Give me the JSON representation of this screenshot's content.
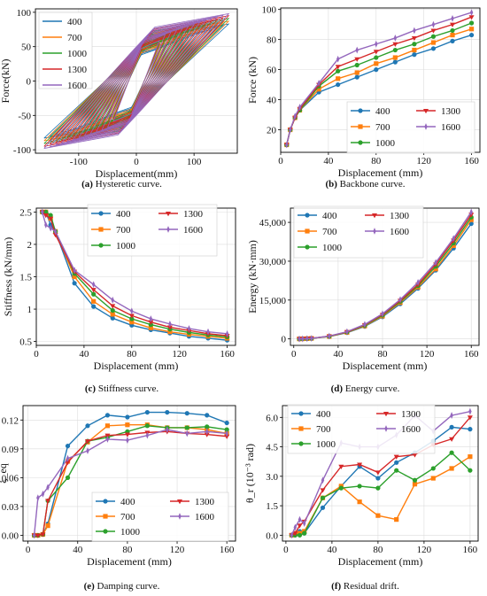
{
  "colors": {
    "400": "#1f77b4",
    "700": "#ff7f0e",
    "1000": "#2ca02c",
    "1300": "#d62728",
    "1600": "#9467bd"
  },
  "series_names": [
    "400",
    "700",
    "1000",
    "1300",
    "1600"
  ],
  "captions": [
    {
      "letter": "(a)",
      "text": "Hysteretic curve."
    },
    {
      "letter": "(b)",
      "text": "Backbone curve."
    },
    {
      "letter": "(c)",
      "text": "Stiffness curve."
    },
    {
      "letter": "(d)",
      "text": "Energy curve."
    },
    {
      "letter": "(e)",
      "text": "Damping curve."
    },
    {
      "letter": "(f)",
      "text": "Residual drift."
    }
  ],
  "chart_data": [
    {
      "type": "line",
      "title": "",
      "xlabel": "Displacement(mm)",
      "ylabel": "Force(kN)",
      "xlim": [
        -175,
        175
      ],
      "ylim": [
        -105,
        105
      ],
      "xticks": [
        -100,
        0,
        100
      ],
      "yticks": [
        -100,
        -50,
        0,
        50,
        100
      ],
      "legend": "top-left",
      "markers": false,
      "envelope": {
        "x": [
          0,
          5,
          10,
          16,
          20,
          32,
          48,
          64,
          80,
          96,
          112,
          128,
          144,
          160
        ],
        "series": {
          "400": [
            0,
            10,
            20,
            28,
            33,
            45,
            50,
            55,
            60,
            65,
            70,
            74,
            79,
            83
          ],
          "700": [
            0,
            10,
            20,
            28,
            33,
            47,
            54,
            58,
            64,
            68,
            73,
            78,
            83,
            87
          ],
          "1000": [
            0,
            10,
            20,
            28,
            33,
            49,
            59,
            63,
            68,
            73,
            77,
            82,
            86,
            91
          ],
          "1300": [
            0,
            10,
            20,
            28,
            34,
            50,
            62,
            67,
            72,
            77,
            81,
            86,
            90,
            95
          ],
          "1600": [
            0,
            10,
            20,
            29,
            35,
            51,
            67,
            73,
            77,
            81,
            86,
            90,
            94,
            98
          ]
        }
      },
      "loop_amplitudes": [
        40,
        50,
        60,
        70,
        80,
        90,
        100,
        110,
        120,
        130,
        140,
        150,
        160
      ]
    },
    {
      "type": "line",
      "title": "",
      "xlabel": "Displacement (mm)",
      "ylabel": "Force (kN)",
      "xlim": [
        0,
        167
      ],
      "ylim": [
        5,
        101
      ],
      "xticks": [
        0,
        40,
        80,
        120,
        160
      ],
      "yticks": [
        20,
        40,
        60,
        80,
        100
      ],
      "legend": "bottom-right-2col",
      "x": [
        5,
        8,
        12,
        16,
        32,
        48,
        64,
        80,
        96,
        112,
        128,
        144,
        160
      ],
      "series": [
        {
          "name": "400",
          "values": [
            10,
            20,
            28,
            33,
            45,
            50,
            55,
            60,
            65,
            70,
            74,
            79,
            83
          ]
        },
        {
          "name": "700",
          "values": [
            10,
            20,
            28,
            33,
            47,
            54,
            58,
            64,
            68,
            73,
            78,
            83,
            87
          ]
        },
        {
          "name": "1000",
          "values": [
            10,
            20,
            28,
            33,
            49,
            59,
            63,
            68,
            73,
            77,
            82,
            86,
            91
          ]
        },
        {
          "name": "1300",
          "values": [
            10,
            20,
            28,
            34,
            50,
            62,
            67,
            72,
            77,
            81,
            86,
            90,
            95
          ]
        },
        {
          "name": "1600",
          "values": [
            10,
            20,
            29,
            35,
            51,
            67,
            73,
            77,
            81,
            86,
            90,
            94,
            98
          ]
        }
      ]
    },
    {
      "type": "line",
      "title": "",
      "xlabel": "Displacement (mm)",
      "ylabel": "Stiffness (kN/mm)",
      "xlim": [
        0,
        167
      ],
      "ylim": [
        0.44,
        2.56
      ],
      "xticks": [
        0,
        40,
        80,
        120,
        160
      ],
      "yticks": [
        0.5,
        1.0,
        1.5,
        2.0,
        2.5
      ],
      "legend": "top-right-2col",
      "x": [
        5,
        8,
        12,
        16,
        32,
        48,
        64,
        80,
        96,
        112,
        128,
        144,
        160
      ],
      "series": [
        {
          "name": "400",
          "values": [
            2.5,
            2.5,
            2.3,
            2.2,
            1.4,
            1.04,
            0.86,
            0.75,
            0.68,
            0.63,
            0.58,
            0.55,
            0.52
          ]
        },
        {
          "name": "700",
          "values": [
            2.5,
            2.5,
            2.4,
            2.2,
            1.5,
            1.12,
            0.92,
            0.8,
            0.71,
            0.65,
            0.61,
            0.58,
            0.55
          ]
        },
        {
          "name": "1000",
          "values": [
            2.5,
            2.5,
            2.45,
            2.2,
            1.55,
            1.23,
            0.98,
            0.85,
            0.76,
            0.69,
            0.64,
            0.6,
            0.57
          ]
        },
        {
          "name": "1300",
          "values": [
            2.5,
            2.45,
            2.4,
            2.15,
            1.58,
            1.3,
            1.05,
            0.9,
            0.8,
            0.72,
            0.67,
            0.62,
            0.59
          ]
        },
        {
          "name": "1600",
          "values": [
            2.5,
            2.3,
            2.25,
            2.2,
            1.6,
            1.38,
            1.14,
            0.97,
            0.85,
            0.77,
            0.7,
            0.65,
            0.62
          ]
        }
      ]
    },
    {
      "type": "line",
      "title": "",
      "xlabel": "Displacement (mm)",
      "ylabel": "Energy (kN·mm)",
      "xlim": [
        -3,
        167
      ],
      "ylim": [
        -2500,
        50500
      ],
      "xticks": [
        0,
        40,
        80,
        120,
        160
      ],
      "yticks": [
        0,
        15000,
        30000,
        45000
      ],
      "ytick_labels": [
        "0",
        "15,000",
        "30,000",
        "45,000"
      ],
      "legend": "top-left-2col",
      "x": [
        5,
        8,
        12,
        16,
        32,
        48,
        64,
        80,
        96,
        112,
        128,
        144,
        160
      ],
      "series": [
        {
          "name": "400",
          "values": [
            0,
            50,
            100,
            200,
            900,
            2400,
            4800,
            8500,
            13500,
            19500,
            26500,
            35000,
            44500
          ]
        },
        {
          "name": "700",
          "values": [
            0,
            50,
            100,
            200,
            950,
            2500,
            5000,
            8800,
            14000,
            20000,
            27000,
            36000,
            46000
          ]
        },
        {
          "name": "1000",
          "values": [
            0,
            50,
            100,
            200,
            1000,
            2600,
            5200,
            9100,
            14400,
            20500,
            28000,
            37000,
            47000
          ]
        },
        {
          "name": "1300",
          "values": [
            0,
            50,
            100,
            200,
            1050,
            2700,
            5400,
            9400,
            14800,
            21000,
            28800,
            38000,
            48000
          ]
        },
        {
          "name": "1600",
          "values": [
            0,
            50,
            100,
            200,
            1100,
            2800,
            5600,
            9700,
            15200,
            21800,
            29500,
            38800,
            49000
          ]
        }
      ]
    },
    {
      "type": "line",
      "title": "",
      "xlabel": "Displacement (mm)",
      "ylabel": "ξ_eq",
      "xlim": [
        -4,
        167
      ],
      "ylim": [
        -0.006,
        0.135
      ],
      "xticks": [
        0,
        40,
        80,
        120,
        160
      ],
      "yticks": [
        0.0,
        0.03,
        0.06,
        0.09,
        0.12
      ],
      "ytick_labels": [
        "0.00",
        "0.03",
        "0.06",
        "0.09",
        "0.12"
      ],
      "legend": "bottom-right-2col",
      "x": [
        5,
        8,
        12,
        16,
        32,
        48,
        64,
        80,
        96,
        112,
        128,
        144,
        160
      ],
      "series": [
        {
          "name": "400",
          "values": [
            0,
            0,
            0.001,
            0.012,
            0.093,
            0.114,
            0.125,
            0.123,
            0.128,
            0.128,
            0.127,
            0.125,
            0.117
          ]
        },
        {
          "name": "700",
          "values": [
            0,
            0,
            0.001,
            0.01,
            0.077,
            0.097,
            0.114,
            0.115,
            0.115,
            0.112,
            0.112,
            0.11,
            0.106
          ]
        },
        {
          "name": "1000",
          "values": [
            0,
            0,
            0.001,
            0.036,
            0.06,
            0.098,
            0.102,
            0.108,
            0.114,
            0.112,
            0.112,
            0.113,
            0.11
          ]
        },
        {
          "name": "1300",
          "values": [
            0,
            0,
            0.001,
            0.036,
            0.076,
            0.098,
            0.104,
            0.105,
            0.107,
            0.108,
            0.106,
            0.105,
            0.103
          ]
        },
        {
          "name": "1600",
          "values": [
            0,
            0.039,
            0.043,
            0.05,
            0.08,
            0.088,
            0.1,
            0.099,
            0.104,
            0.11,
            0.106,
            0.108,
            0.106
          ]
        }
      ]
    },
    {
      "type": "line",
      "title": "",
      "xlabel": "Displacement (mm)",
      "ylabel": "θ_r (10⁻³ rad)",
      "xlim": [
        -3,
        167
      ],
      "ylim": [
        -0.3,
        6.6
      ],
      "xticks": [
        0,
        40,
        80,
        120,
        160
      ],
      "yticks": [
        0.0,
        1.5,
        3.0,
        4.5,
        6.0
      ],
      "ytick_labels": [
        "0.0",
        "1.5",
        "3.0",
        "4.5",
        "6.0"
      ],
      "legend": "top-left-2col",
      "x": [
        5,
        8,
        12,
        16,
        32,
        48,
        64,
        80,
        96,
        112,
        128,
        144,
        160
      ],
      "series": [
        {
          "name": "400",
          "values": [
            0,
            0,
            0.2,
            0.1,
            1.4,
            2.5,
            3.5,
            2.9,
            3.7,
            4.2,
            4.8,
            5.5,
            5.4
          ]
        },
        {
          "name": "700",
          "values": [
            0,
            0.1,
            0.1,
            0.2,
            1.9,
            2.5,
            1.7,
            1.0,
            0.8,
            2.6,
            2.9,
            3.4,
            4.0
          ]
        },
        {
          "name": "1000",
          "values": [
            0,
            0,
            0,
            0.1,
            1.9,
            2.4,
            2.5,
            2.4,
            3.3,
            2.8,
            3.4,
            4.2,
            3.3
          ]
        },
        {
          "name": "1300",
          "values": [
            0,
            0.1,
            0.5,
            0.7,
            2.3,
            3.5,
            3.6,
            3.2,
            4.0,
            4.1,
            4.6,
            4.9,
            6.0
          ]
        },
        {
          "name": "1600",
          "values": [
            0,
            0.4,
            0.8,
            0.6,
            2.8,
            4.7,
            4.5,
            4.5,
            5.1,
            6.1,
            5.3,
            6.1,
            6.3
          ]
        }
      ]
    }
  ]
}
